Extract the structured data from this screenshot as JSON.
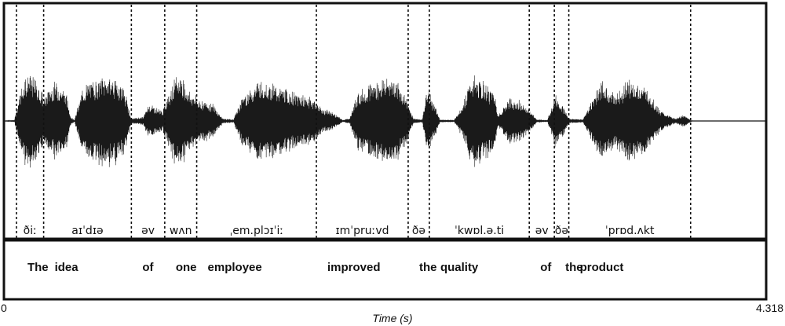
{
  "axis": {
    "start_label": "0",
    "end_label": "4.318",
    "title": "Time (s)",
    "range": [
      0,
      4.318
    ]
  },
  "segments": [
    {
      "ipa": "ðiː",
      "word": "The",
      "start": 0.071,
      "end": 0.225
    },
    {
      "ipa": "aɪˈdɪə",
      "word": "idea",
      "start": 0.225,
      "end": 0.722
    },
    {
      "ipa": "əv",
      "word": "of",
      "start": 0.722,
      "end": 0.911
    },
    {
      "ipa": "wʌn",
      "word": "one",
      "start": 0.911,
      "end": 1.092
    },
    {
      "ipa": "ˌem.plɔɪˈiː",
      "word": "employee",
      "start": 1.092,
      "end": 1.77
    },
    {
      "ipa": "ɪmˈpruːvd",
      "word": "improved",
      "start": 1.77,
      "end": 2.29
    },
    {
      "ipa": "ðə",
      "word": "the",
      "start": 2.29,
      "end": 2.41
    },
    {
      "ipa": "ˈkwɒl.ə.ti",
      "word": "quality",
      "start": 2.41,
      "end": 2.976
    },
    {
      "ipa": "əv",
      "word": "of",
      "start": 2.976,
      "end": 3.118
    },
    {
      "ipa": "ðə",
      "word": "the",
      "start": 3.118,
      "end": 3.2
    },
    {
      "ipa": "ˈprɒd.ʌkt",
      "word": "product",
      "start": 3.2,
      "end": 3.89
    }
  ],
  "waveform": {
    "color": "#1a1a1a",
    "envelope": [
      [
        0.0,
        0.0
      ],
      [
        0.06,
        0.02
      ],
      [
        0.09,
        0.55
      ],
      [
        0.12,
        0.95
      ],
      [
        0.18,
        0.85
      ],
      [
        0.23,
        0.45
      ],
      [
        0.26,
        0.7
      ],
      [
        0.3,
        0.78
      ],
      [
        0.35,
        0.6
      ],
      [
        0.38,
        0.08
      ],
      [
        0.4,
        0.02
      ],
      [
        0.45,
        0.7
      ],
      [
        0.53,
        0.85
      ],
      [
        0.6,
        0.92
      ],
      [
        0.68,
        0.7
      ],
      [
        0.72,
        0.05
      ],
      [
        0.79,
        0.08
      ],
      [
        0.82,
        0.35
      ],
      [
        0.9,
        0.2
      ],
      [
        0.95,
        0.75
      ],
      [
        1.0,
        0.95
      ],
      [
        1.05,
        0.6
      ],
      [
        1.1,
        0.45
      ],
      [
        1.18,
        0.35
      ],
      [
        1.24,
        0.05
      ],
      [
        1.3,
        0.03
      ],
      [
        1.35,
        0.5
      ],
      [
        1.45,
        0.85
      ],
      [
        1.55,
        0.7
      ],
      [
        1.65,
        0.55
      ],
      [
        1.76,
        0.45
      ],
      [
        1.8,
        0.25
      ],
      [
        1.86,
        0.18
      ],
      [
        1.92,
        0.02
      ],
      [
        1.96,
        0.06
      ],
      [
        2.0,
        0.55
      ],
      [
        2.1,
        0.8
      ],
      [
        2.2,
        0.9
      ],
      [
        2.27,
        0.55
      ],
      [
        2.32,
        0.05
      ],
      [
        2.37,
        0.03
      ],
      [
        2.4,
        0.7
      ],
      [
        2.43,
        0.4
      ],
      [
        2.47,
        0.03
      ],
      [
        2.55,
        0.02
      ],
      [
        2.6,
        0.35
      ],
      [
        2.65,
        0.9
      ],
      [
        2.72,
        0.75
      ],
      [
        2.78,
        0.6
      ],
      [
        2.8,
        0.1
      ],
      [
        2.86,
        0.45
      ],
      [
        2.92,
        0.4
      ],
      [
        2.98,
        0.2
      ],
      [
        3.02,
        0.03
      ],
      [
        3.08,
        0.02
      ],
      [
        3.12,
        0.55
      ],
      [
        3.16,
        0.35
      ],
      [
        3.2,
        0.05
      ],
      [
        3.28,
        0.03
      ],
      [
        3.32,
        0.35
      ],
      [
        3.38,
        0.8
      ],
      [
        3.46,
        0.55
      ],
      [
        3.54,
        0.85
      ],
      [
        3.64,
        0.65
      ],
      [
        3.72,
        0.2
      ],
      [
        3.8,
        0.05
      ],
      [
        3.85,
        0.12
      ],
      [
        3.9,
        0.0
      ],
      [
        4.318,
        0.0
      ]
    ]
  }
}
